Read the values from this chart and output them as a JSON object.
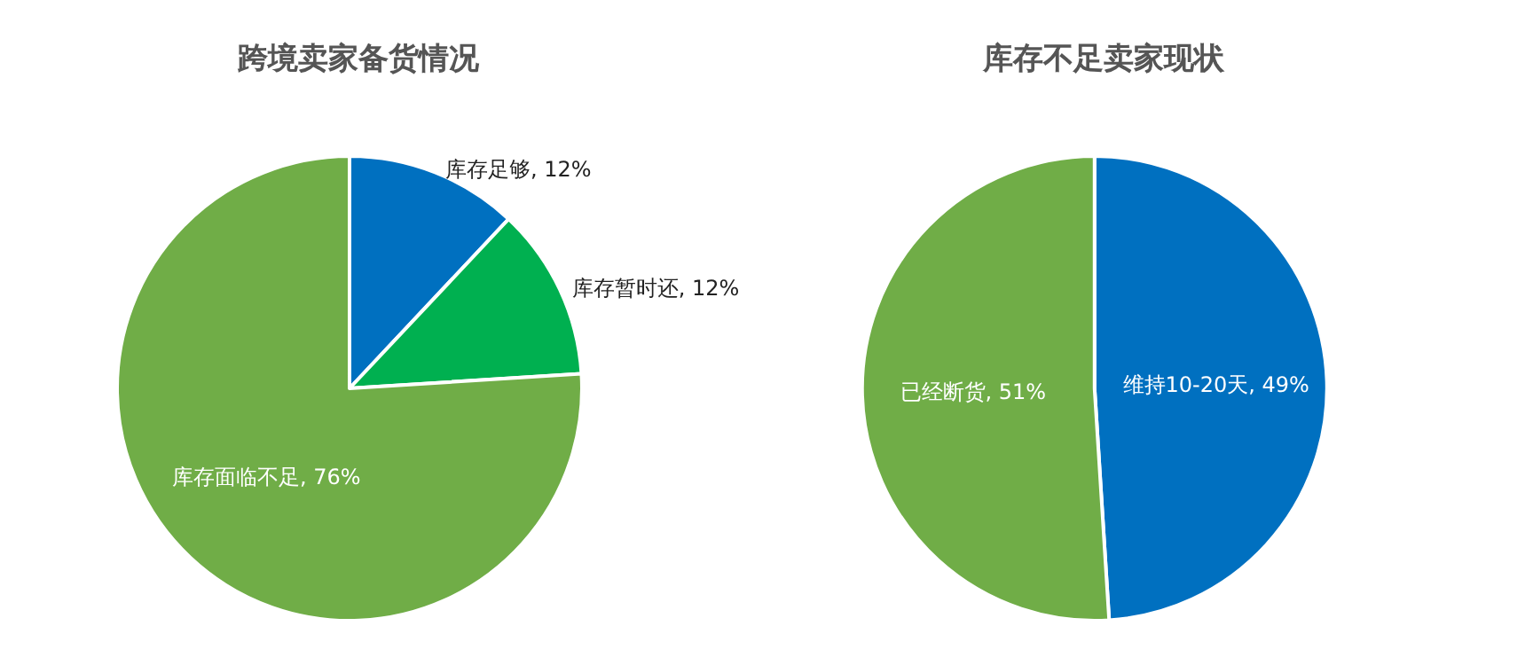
{
  "chart_data": [
    {
      "type": "pie",
      "title": "跨境卖家备货情况",
      "categories": [
        "库存足够",
        "库存暂时还",
        "库存面临不足"
      ],
      "values": [
        12,
        12,
        76
      ],
      "colors": [
        "#0070c0",
        "#00b050",
        "#70ad47"
      ],
      "value_labels": [
        "12%",
        "12%",
        "76%"
      ]
    },
    {
      "type": "pie",
      "title": "库存不足卖家现状",
      "categories": [
        "维持10-20天",
        "已经断货"
      ],
      "values": [
        49,
        51
      ],
      "colors": [
        "#0070c0",
        "#70ad47"
      ],
      "value_labels": [
        "49%",
        "51%"
      ]
    }
  ]
}
